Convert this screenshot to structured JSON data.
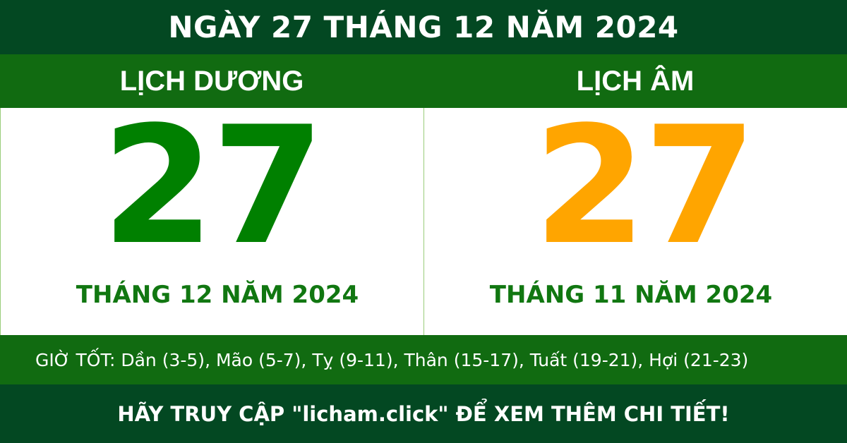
{
  "header": {
    "title": "NGÀY 27 THÁNG 12 NĂM 2024"
  },
  "solar": {
    "label": "LỊCH DƯƠNG",
    "day": "27",
    "month_year": "THÁNG 12 NĂM 2024",
    "color": "#008000"
  },
  "lunar": {
    "label": "LỊCH ÂM",
    "day": "27",
    "month_year": "THÁNG 11 NĂM 2024",
    "color": "#FFA500"
  },
  "good_hours": "GIỜ TỐT: Dần (3-5), Mão (5-7), Tỵ (9-11), Thân (15-17), Tuất (19-21), Hợi (21-23)",
  "footer": {
    "text": "HÃY TRUY CẬP \"licham.click\" ĐỂ XEM THÊM CHI TIẾT!"
  }
}
